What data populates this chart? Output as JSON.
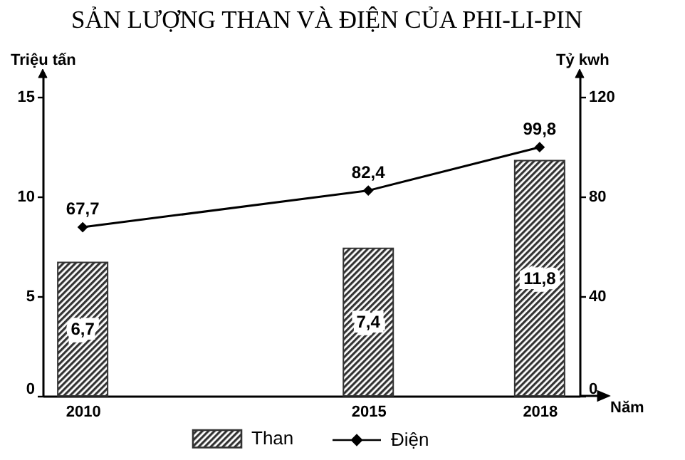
{
  "chart_data": {
    "type": "bar",
    "title": "SẢN LƯỢNG THAN VÀ ĐIỆN CỦA PHI-LI-PIN",
    "xlabel": "Năm",
    "ylabel": "Triệu tấn",
    "y2label": "Tỷ kwh",
    "x": [
      2010,
      2015,
      2018
    ],
    "xlim": [
      2009.3,
      2018.7
    ],
    "xticks": [
      2010,
      2015,
      2018
    ],
    "ylim": [
      0,
      16
    ],
    "yticks": [
      0,
      5,
      10,
      15
    ],
    "y2lim": [
      0,
      128
    ],
    "y2ticks": [
      0,
      40,
      80,
      120
    ],
    "series": [
      {
        "name": "Than",
        "color": "#333333",
        "values": [
          6.7,
          7.4,
          11.8
        ],
        "value_labels": [
          "6,7",
          "7,4",
          "11,8"
        ]
      },
      {
        "name": "Điện",
        "type": "line",
        "axis": "y2",
        "color": "#000000",
        "values": [
          67.7,
          82.4,
          99.8
        ],
        "value_labels": [
          "67,7",
          "82,4",
          "99,8"
        ]
      }
    ],
    "marker": "diamond",
    "grid": false,
    "legend": "bottom"
  }
}
